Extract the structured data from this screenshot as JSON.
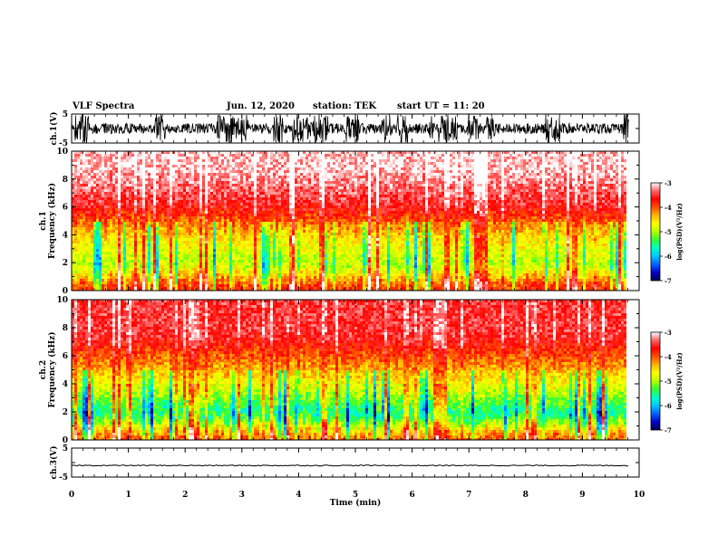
{
  "header": {
    "title": "VLF Spectra",
    "date": "Jun. 12, 2020",
    "station": "station: TEK",
    "start_ut": "start UT =   11: 20"
  },
  "colors": {
    "background": "#ffffff",
    "axes": "#000000",
    "colormap": [
      "#000050",
      "#0000c8",
      "#0064ff",
      "#00c8ff",
      "#00ffc8",
      "#32ff32",
      "#b4ff00",
      "#ffff00",
      "#ffb400",
      "#ff5000",
      "#ff0000",
      "#ff6464",
      "#ffffff"
    ]
  },
  "chart_data": [
    {
      "type": "line",
      "panel": "ch1-waveform",
      "ylabel": "ch.1(V)",
      "yticks": [
        "5",
        "-5"
      ],
      "ylim": [
        -5,
        5
      ],
      "description_of_signal": "dense noisy waveform, amplitude mostly within ±2 V with frequent bursts to ±5 V"
    },
    {
      "type": "heatmap",
      "panel": "ch1-spectrogram",
      "ylabel": "ch.1\nFrequency (kHz)",
      "ylim": [
        0,
        10
      ],
      "yticks": [
        "0",
        "2",
        "4",
        "6",
        "8",
        "10"
      ],
      "colorbar": {
        "label": "log(PSD)(V²/Hz)",
        "range": [
          -7,
          -3
        ],
        "ticks": [
          "-3",
          "-4",
          "-5",
          "-6",
          "-7"
        ]
      },
      "dominant_levels": [
        {
          "band_khz": [
            0,
            0.5
          ],
          "log_psd": -3.8
        },
        {
          "band_khz": [
            0.5,
            3.5
          ],
          "log_psd": -5.0
        },
        {
          "band_khz": [
            3.5,
            4.5
          ],
          "log_psd": -4.5
        },
        {
          "band_khz": [
            4.5,
            7.5
          ],
          "log_psd": -3.6
        },
        {
          "band_khz": [
            7.5,
            10
          ],
          "log_psd": -3.1
        }
      ]
    },
    {
      "type": "heatmap",
      "panel": "ch2-spectrogram",
      "ylabel": "ch.2\nFrequency (kHz)",
      "ylim": [
        0,
        10
      ],
      "yticks": [
        "0",
        "2",
        "4",
        "6",
        "8",
        "10"
      ],
      "colorbar": {
        "label": "log(PSD)(V²/Hz)",
        "range": [
          -7,
          -3
        ],
        "ticks": [
          "-3",
          "-4",
          "-5",
          "-6",
          "-7"
        ]
      },
      "dominant_levels": [
        {
          "band_khz": [
            0,
            0.3
          ],
          "log_psd": -4.0
        },
        {
          "band_khz": [
            0.3,
            3.5
          ],
          "log_psd": -5.6
        },
        {
          "band_khz": [
            3.5,
            5
          ],
          "log_psd": -4.6
        },
        {
          "band_khz": [
            5,
            10
          ],
          "log_psd": -3.5
        }
      ]
    },
    {
      "type": "line",
      "panel": "ch3-waveform",
      "ylabel": "ch.3(V)",
      "yticks": [
        "5",
        "-5"
      ],
      "ylim": [
        -5,
        5
      ],
      "description_of_signal": "nearly flat trace near -1 V"
    }
  ],
  "xaxis": {
    "label": "Time (min)",
    "xlim": [
      0,
      10
    ],
    "ticks": [
      "0",
      "1",
      "2",
      "3",
      "4",
      "5",
      "6",
      "7",
      "8",
      "9",
      "10"
    ]
  }
}
